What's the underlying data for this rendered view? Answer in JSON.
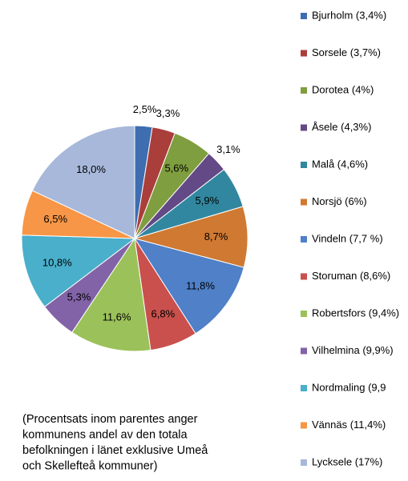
{
  "chart_data": {
    "type": "pie",
    "categories": [
      "Bjurholm (3,4%)",
      "Sorsele (3,7%)",
      "Dorotea (4%)",
      "Åsele (4,3%)",
      "Malå (4,6%)",
      "Norsjö (6%)",
      "Vindeln (7,7 %)",
      "Storuman (8,6%)",
      "Robertsfors (9,4%)",
      "Vilhelmina (9,9%)",
      "Nordmaling (9,9",
      "Vännäs (11,4%)",
      "Lycksele (17%)"
    ],
    "values": [
      2.5,
      3.3,
      5.6,
      3.1,
      5.9,
      8.7,
      11.8,
      6.8,
      11.6,
      5.3,
      10.8,
      6.5,
      18.0
    ],
    "value_labels": [
      "2,5%",
      "3,3%",
      "5,6%",
      "3,1%",
      "5,9%",
      "8,7%",
      "11,8%",
      "6,8%",
      "11,6%",
      "5,3%",
      "10,8%",
      "6,5%",
      "18,0%"
    ],
    "colors": [
      "#3e6db0",
      "#aa3e3b",
      "#7f9e3f",
      "#634985",
      "#31879f",
      "#cf7932",
      "#4f80c8",
      "#c9504d",
      "#9bc25a",
      "#8363a7",
      "#49afcb",
      "#f79646",
      "#a7b8da"
    ],
    "annotation": [
      "(Procentsats inom parentes anger",
      "kommunens andel av den totala",
      "befolkningen i länet exklusive Umeå",
      "och Skellefteå kommuner)"
    ]
  }
}
